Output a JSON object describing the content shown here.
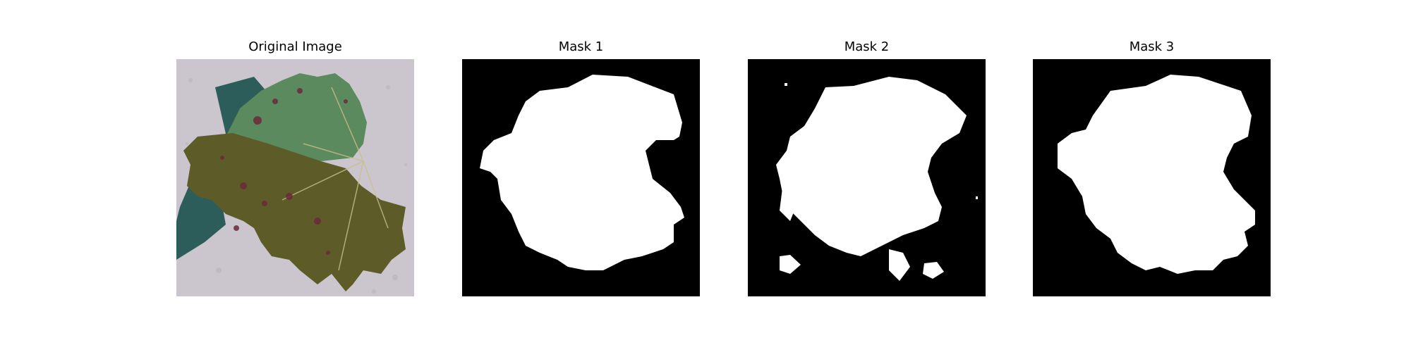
{
  "panels": [
    {
      "title": "Original Image",
      "image": "leaf-photo"
    },
    {
      "title": "Mask 1",
      "image": "segmentation-mask"
    },
    {
      "title": "Mask 2",
      "image": "segmentation-mask"
    },
    {
      "title": "Mask 3",
      "image": "segmentation-mask"
    }
  ],
  "colors": {
    "background": "#ffffff",
    "mask_bg": "#000000",
    "mask_fg": "#ffffff",
    "photo_bg": "#c9c3cc",
    "leaf_green": "#4f7a52",
    "leaf_olive": "#5b5a26",
    "leaf_shadow": "#2a5a58"
  }
}
